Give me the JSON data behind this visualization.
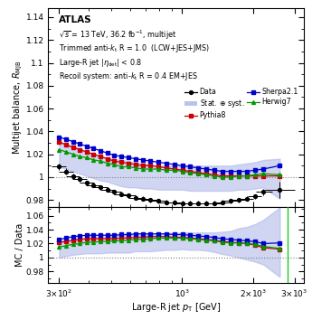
{
  "ylabel_main": "Multijet balance, R$_{\\mathrm{MJB}}$",
  "ylabel_ratio": "MC / Data",
  "xlabel": "Large-R jet p$_{\\mathrm{T}}$ [GeV]",
  "ylim_main": [
    0.974,
    1.148
  ],
  "ylim_ratio": [
    0.963,
    1.073
  ],
  "xlim": [
    270,
    3300
  ],
  "band_color": "#aab4e8",
  "band_alpha": 0.55,
  "data_color": "#000000",
  "pythia_color": "#cc0000",
  "sherpa_color": "#0000cc",
  "herwig_color": "#009900",
  "pt_data": [
    300,
    322,
    344,
    367,
    393,
    420,
    450,
    481,
    514,
    552,
    592,
    634,
    682,
    733,
    793,
    856,
    927,
    1001,
    1083,
    1168,
    1262,
    1366,
    1479,
    1603,
    1736,
    1881,
    2038,
    2210,
    2600
  ],
  "rmjb_data": [
    1.009,
    1.005,
    1.001,
    0.998,
    0.995,
    0.993,
    0.991,
    0.989,
    0.987,
    0.985,
    0.984,
    0.982,
    0.981,
    0.98,
    0.979,
    0.978,
    0.978,
    0.977,
    0.977,
    0.977,
    0.977,
    0.977,
    0.978,
    0.979,
    0.98,
    0.981,
    0.983,
    0.987,
    0.989
  ],
  "err_data_y": [
    0.003,
    0.003,
    0.002,
    0.002,
    0.002,
    0.002,
    0.002,
    0.002,
    0.002,
    0.002,
    0.002,
    0.002,
    0.002,
    0.002,
    0.002,
    0.002,
    0.002,
    0.002,
    0.002,
    0.002,
    0.002,
    0.002,
    0.002,
    0.002,
    0.002,
    0.002,
    0.002,
    0.003,
    0.007
  ],
  "err_data_x_lo": [
    22,
    22,
    23,
    26,
    28,
    30,
    31,
    33,
    36,
    38,
    40,
    44,
    47,
    50,
    54,
    58,
    63,
    68,
    73,
    79,
    85,
    93,
    100,
    108,
    117,
    127,
    138,
    150,
    350
  ],
  "err_data_x_hi": [
    22,
    22,
    23,
    26,
    28,
    30,
    31,
    33,
    36,
    38,
    40,
    44,
    47,
    50,
    54,
    58,
    63,
    68,
    73,
    79,
    85,
    93,
    100,
    108,
    117,
    127,
    138,
    200,
    400
  ],
  "pt_mc": [
    300,
    322,
    344,
    367,
    393,
    420,
    450,
    481,
    514,
    552,
    592,
    634,
    682,
    733,
    793,
    856,
    927,
    1001,
    1083,
    1168,
    1262,
    1366,
    1479,
    1603,
    1736,
    1881,
    2038,
    2210,
    2600
  ],
  "rmjb_pythia": [
    1.031,
    1.028,
    1.026,
    1.024,
    1.022,
    1.02,
    1.018,
    1.016,
    1.014,
    1.013,
    1.012,
    1.011,
    1.01,
    1.01,
    1.009,
    1.008,
    1.007,
    1.006,
    1.005,
    1.004,
    1.003,
    1.002,
    1.001,
    1.001,
    1.001,
    1.001,
    1.001,
    1.001,
    1.001
  ],
  "rmjb_sherpa": [
    1.035,
    1.033,
    1.031,
    1.029,
    1.027,
    1.025,
    1.023,
    1.021,
    1.019,
    1.018,
    1.017,
    1.016,
    1.015,
    1.014,
    1.013,
    1.012,
    1.011,
    1.01,
    1.009,
    1.008,
    1.007,
    1.006,
    1.005,
    1.005,
    1.005,
    1.005,
    1.006,
    1.007,
    1.01
  ],
  "rmjb_herwig": [
    1.024,
    1.022,
    1.02,
    1.018,
    1.017,
    1.015,
    1.014,
    1.012,
    1.011,
    1.009,
    1.009,
    1.008,
    1.007,
    1.007,
    1.007,
    1.006,
    1.006,
    1.005,
    1.004,
    1.003,
    1.002,
    1.001,
    1.0,
    1.0,
    1.001,
    1.001,
    1.002,
    1.003,
    1.002
  ],
  "band_main_lo": [
    1.009,
    1.007,
    1.005,
    1.003,
    1.001,
    0.999,
    0.997,
    0.996,
    0.994,
    0.992,
    0.991,
    0.991,
    0.99,
    0.99,
    0.989,
    0.989,
    0.989,
    0.989,
    0.988,
    0.988,
    0.988,
    0.988,
    0.988,
    0.988,
    0.989,
    0.989,
    0.99,
    0.991,
    0.981
  ],
  "band_main_hi": [
    1.031,
    1.029,
    1.027,
    1.025,
    1.022,
    1.02,
    1.018,
    1.017,
    1.016,
    1.015,
    1.014,
    1.013,
    1.012,
    1.011,
    1.01,
    1.01,
    1.01,
    1.01,
    1.01,
    1.01,
    1.01,
    1.01,
    1.01,
    1.01,
    1.011,
    1.012,
    1.013,
    1.015,
    1.016
  ],
  "ratio_pythia": [
    1.022,
    1.023,
    1.025,
    1.026,
    1.027,
    1.027,
    1.027,
    1.027,
    1.027,
    1.028,
    1.028,
    1.029,
    1.029,
    1.03,
    1.03,
    1.03,
    1.029,
    1.029,
    1.028,
    1.027,
    1.026,
    1.025,
    1.023,
    1.022,
    1.021,
    1.02,
    1.018,
    1.014,
    1.012
  ],
  "ratio_sherpa": [
    1.026,
    1.028,
    1.03,
    1.031,
    1.032,
    1.032,
    1.032,
    1.032,
    1.032,
    1.033,
    1.033,
    1.034,
    1.034,
    1.034,
    1.034,
    1.034,
    1.033,
    1.033,
    1.032,
    1.031,
    1.03,
    1.029,
    1.027,
    1.026,
    1.025,
    1.024,
    1.023,
    1.02,
    1.021
  ],
  "ratio_herwig": [
    1.015,
    1.017,
    1.019,
    1.02,
    1.022,
    1.022,
    1.023,
    1.023,
    1.024,
    1.024,
    1.025,
    1.026,
    1.026,
    1.027,
    1.028,
    1.028,
    1.028,
    1.028,
    1.027,
    1.026,
    1.025,
    1.024,
    1.022,
    1.021,
    1.021,
    1.02,
    1.019,
    1.016,
    1.013
  ],
  "ratio_band_lo": [
    1.0,
    1.002,
    1.004,
    1.005,
    1.006,
    1.006,
    1.006,
    1.007,
    1.007,
    1.007,
    1.007,
    1.009,
    1.009,
    1.009,
    1.01,
    1.011,
    1.011,
    1.012,
    1.011,
    1.011,
    1.01,
    1.008,
    1.005,
    1.003,
    1.0,
    0.997,
    0.994,
    0.99,
    0.972
  ],
  "ratio_band_hi": [
    1.024,
    1.024,
    1.026,
    1.027,
    1.028,
    1.03,
    1.03,
    1.03,
    1.032,
    1.032,
    1.033,
    1.033,
    1.033,
    1.033,
    1.033,
    1.035,
    1.035,
    1.036,
    1.036,
    1.036,
    1.036,
    1.036,
    1.037,
    1.038,
    1.042,
    1.044,
    1.048,
    1.054,
    1.072
  ],
  "green_vline": 2800,
  "marker_size": 2.8,
  "linewidth": 0.9,
  "elinewidth": 0.7,
  "capsize": 0
}
